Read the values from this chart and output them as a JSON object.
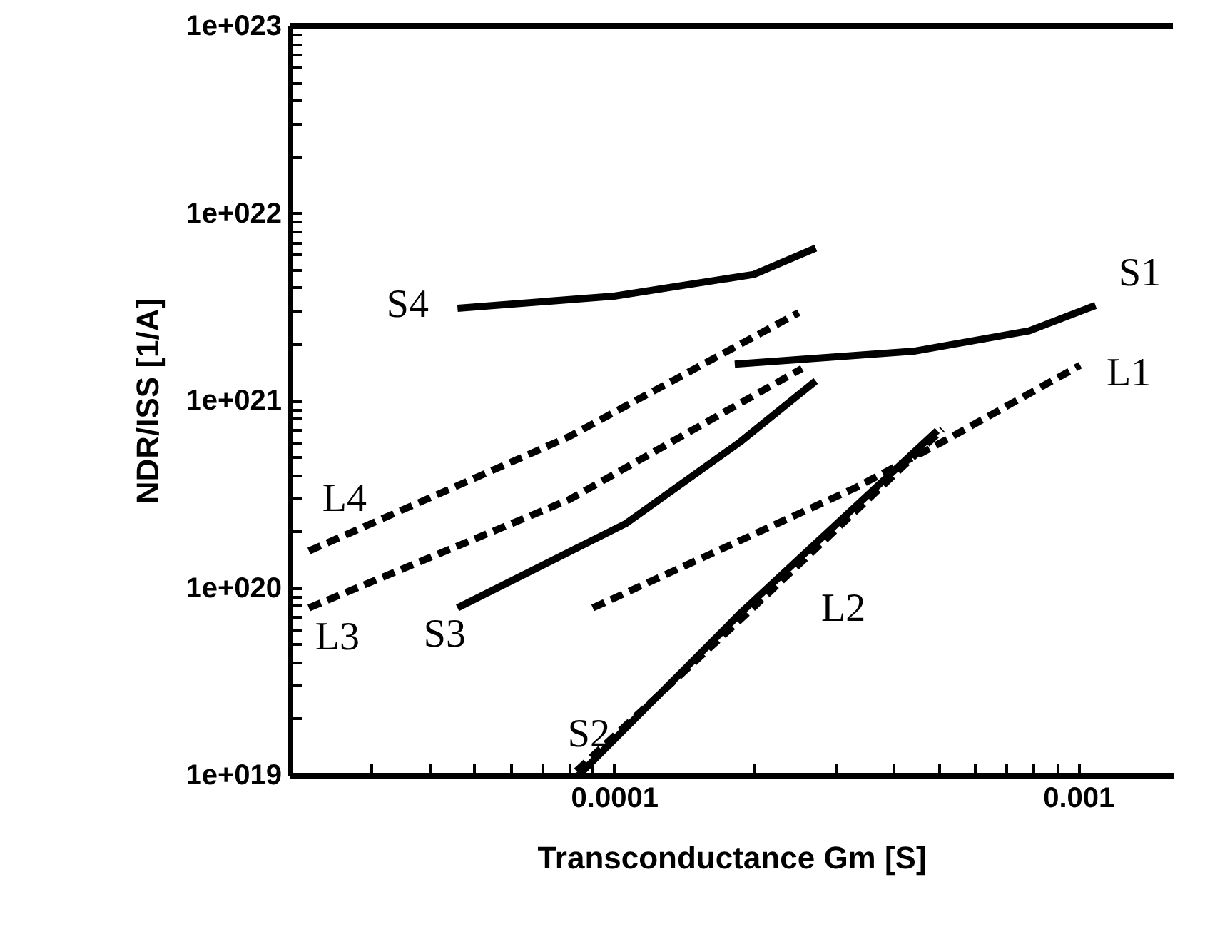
{
  "chart_data": {
    "type": "line",
    "xlabel": "Transconductance Gm [S]",
    "ylabel": "NDR/ISS [1/A]",
    "log": "xy",
    "legend": false,
    "marker": "none",
    "xlim": [
      2e-05,
      0.0016
    ],
    "xticks": [
      {
        "value": 2e-05,
        "label": null
      },
      {
        "value": 3e-05,
        "label": null
      },
      {
        "value": 4e-05,
        "label": null
      },
      {
        "value": 5e-05,
        "label": null
      },
      {
        "value": 6e-05,
        "label": null
      },
      {
        "value": 7e-05,
        "label": null
      },
      {
        "value": 8e-05,
        "label": null
      },
      {
        "value": 9e-05,
        "label": null
      },
      {
        "value": 0.0001,
        "label": "0.0001"
      },
      {
        "value": 0.0002,
        "label": null
      },
      {
        "value": 0.0003,
        "label": null
      },
      {
        "value": 0.0004,
        "label": null
      },
      {
        "value": 0.0005,
        "label": null
      },
      {
        "value": 0.0006,
        "label": null
      },
      {
        "value": 0.0007,
        "label": null
      },
      {
        "value": 0.0008,
        "label": null
      },
      {
        "value": 0.0009,
        "label": null
      },
      {
        "value": 0.001,
        "label": "0.001"
      }
    ],
    "ylim": [
      1e+19,
      1e+23
    ],
    "yticks": [
      {
        "value": 1e+19,
        "label": "1e+019"
      },
      {
        "value": 2e+19,
        "label": null
      },
      {
        "value": 3e+19,
        "label": null
      },
      {
        "value": 4e+19,
        "label": null
      },
      {
        "value": 5e+19,
        "label": null
      },
      {
        "value": 6e+19,
        "label": null
      },
      {
        "value": 7e+19,
        "label": null
      },
      {
        "value": 8e+19,
        "label": null
      },
      {
        "value": 9e+19,
        "label": null
      },
      {
        "value": 1e+20,
        "label": "1e+020"
      },
      {
        "value": 2e+20,
        "label": null
      },
      {
        "value": 3e+20,
        "label": null
      },
      {
        "value": 4e+20,
        "label": null
      },
      {
        "value": 5e+20,
        "label": null
      },
      {
        "value": 6e+20,
        "label": null
      },
      {
        "value": 7e+20,
        "label": null
      },
      {
        "value": 8e+20,
        "label": null
      },
      {
        "value": 9e+20,
        "label": null
      },
      {
        "value": 1e+21,
        "label": "1e+021"
      },
      {
        "value": 2e+21,
        "label": null
      },
      {
        "value": 3e+21,
        "label": null
      },
      {
        "value": 4e+21,
        "label": null
      },
      {
        "value": 5e+21,
        "label": null
      },
      {
        "value": 6e+21,
        "label": null
      },
      {
        "value": 7e+21,
        "label": null
      },
      {
        "value": 8e+21,
        "label": null
      },
      {
        "value": 9e+21,
        "label": null
      },
      {
        "value": 1e+22,
        "label": "1e+022"
      },
      {
        "value": 2e+22,
        "label": null
      },
      {
        "value": 3e+22,
        "label": null
      },
      {
        "value": 4e+22,
        "label": null
      },
      {
        "value": 5e+22,
        "label": null
      },
      {
        "value": 6e+22,
        "label": null
      },
      {
        "value": 7e+22,
        "label": null
      },
      {
        "value": 8e+22,
        "label": null
      },
      {
        "value": 9e+22,
        "label": null
      },
      {
        "value": 1e+23,
        "label": "1e+023"
      }
    ],
    "series": [
      {
        "name": "S1",
        "color": "#000000",
        "line_style": "solid",
        "x": [
          0.000182,
          0.000443,
          0.000784,
          0.00109
        ],
        "values": [
          1.56e+21,
          1.83e+21,
          2.35e+21,
          3.21e+21
        ]
      },
      {
        "name": "S2",
        "color": "#000000",
        "line_style": "solid",
        "x": [
          8.4e-05,
          0.000187,
          0.000497
        ],
        "values": [
          1e+19,
          7.3e+19,
          6.9e+20
        ]
      },
      {
        "name": "S3",
        "color": "#000000",
        "line_style": "solid",
        "x": [
          4.6e-05,
          0.000106,
          0.000187,
          0.000272
        ],
        "values": [
          7.8e+19,
          2.2e+20,
          6e+20,
          1.27e+21
        ]
      },
      {
        "name": "S4",
        "color": "#000000",
        "line_style": "solid",
        "x": [
          4.6e-05,
          0.0001,
          0.0002,
          0.000272
        ],
        "values": [
          3.1e+21,
          3.6e+21,
          4.7e+21,
          6.5e+21
        ]
      },
      {
        "name": "L1",
        "color": "#000000",
        "line_style": "dashed",
        "x": [
          9e-05,
          0.00033,
          0.00051,
          0.00101
        ],
        "values": [
          7.8e+19,
          3.4e+20,
          6e+20,
          1.54e+21
        ]
      },
      {
        "name": "L2",
        "color": "#000000",
        "line_style": "dashed",
        "x": [
          8.3e-05,
          0.00019,
          0.00051
        ],
        "values": [
          1.05e+19,
          7e+19,
          7e+20
        ]
      },
      {
        "name": "L3",
        "color": "#000000",
        "line_style": "dashed",
        "x": [
          2.2e-05,
          8e-05,
          0.000254
        ],
        "values": [
          7.8e+19,
          2.95e+20,
          1.48e+21
        ]
      },
      {
        "name": "L4",
        "color": "#000000",
        "line_style": "dashed",
        "x": [
          2.2e-05,
          8e-05,
          0.00025
        ],
        "values": [
          1.57e+20,
          6.4e+20,
          2.94e+21
        ]
      }
    ]
  }
}
